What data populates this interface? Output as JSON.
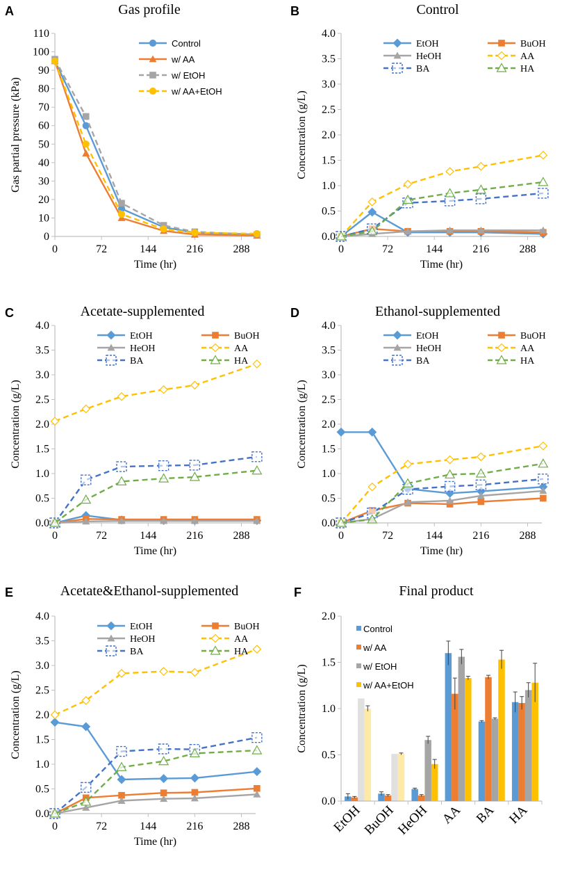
{
  "colors": {
    "control": "#5b9bd5",
    "aa": "#ed7d31",
    "etoh": "#a5a5a5",
    "aaetoh": "#ffc000",
    "EtOH": "#5b9bd5",
    "BuOH": "#ed7d31",
    "HeOH": "#a5a5a5",
    "AA": "#ffc000",
    "BA": "#4472c4",
    "HA": "#70ad47",
    "axis": "#bfbfbf",
    "text": "#000000"
  },
  "chart_data": [
    {
      "panel": "A",
      "type": "line",
      "title": "Gas profile",
      "xlabel": "Time (hr)",
      "ylabel": "Gas partial pressure (kPa)",
      "xlim": [
        0,
        310
      ],
      "ylim": [
        0,
        110
      ],
      "xticks": [
        "0",
        "72",
        "144",
        "216",
        "288"
      ],
      "yticks": [
        "0",
        "10",
        "20",
        "30",
        "40",
        "50",
        "60",
        "70",
        "80",
        "90",
        "100",
        "110"
      ],
      "x": [
        0,
        48,
        103,
        168,
        216,
        312
      ],
      "series": [
        {
          "name": "Control",
          "key": "control",
          "marker": "circle",
          "dash": "solid",
          "values": [
            95,
            60,
            15,
            5,
            2,
            1
          ]
        },
        {
          "name": "w/ AA",
          "key": "aa",
          "marker": "triangle",
          "dash": "solid",
          "values": [
            95,
            45,
            10,
            3,
            1,
            0.5
          ]
        },
        {
          "name": "w/ EtOH",
          "key": "etoh",
          "marker": "square",
          "dash": "dashed",
          "values": [
            96,
            65,
            18,
            6,
            2.5,
            1
          ]
        },
        {
          "name": "w/ AA+EtOH",
          "key": "aaetoh",
          "marker": "circle",
          "dash": "dashed",
          "values": [
            95,
            50,
            12,
            4,
            2,
            1.5
          ]
        }
      ]
    },
    {
      "panel": "B",
      "type": "line",
      "title": "Control",
      "xlabel": "Time (hr)",
      "ylabel": "Concentration (g/L)",
      "xlim": [
        0,
        310
      ],
      "ylim": [
        0,
        4.0
      ],
      "xticks": [
        "0",
        "72",
        "144",
        "216",
        "288"
      ],
      "yticks": [
        "0.0",
        "0.5",
        "1.0",
        "1.5",
        "2.0",
        "2.5",
        "3.0",
        "3.5",
        "4.0"
      ],
      "x": [
        0,
        48,
        103,
        168,
        216,
        312
      ],
      "series": [
        {
          "name": "EtOH",
          "key": "EtOH",
          "marker": "diamond",
          "dash": "solid",
          "values": [
            0,
            0.48,
            0.08,
            0.08,
            0.08,
            0.05
          ]
        },
        {
          "name": "BuOH",
          "key": "BuOH",
          "marker": "square",
          "dash": "solid",
          "values": [
            0,
            0.15,
            0.1,
            0.1,
            0.1,
            0.08
          ]
        },
        {
          "name": "HeOH",
          "key": "HeOH",
          "marker": "triangle",
          "dash": "solid",
          "values": [
            0,
            0.05,
            0.1,
            0.12,
            0.12,
            0.12
          ]
        },
        {
          "name": "AA",
          "key": "AA",
          "marker": "diamond-open",
          "dash": "dashed",
          "values": [
            0,
            0.68,
            1.03,
            1.28,
            1.38,
            1.6
          ]
        },
        {
          "name": "BA",
          "key": "BA",
          "marker": "square-open",
          "dash": "dashed",
          "values": [
            0,
            0.15,
            0.66,
            0.7,
            0.74,
            0.85
          ]
        },
        {
          "name": "HA",
          "key": "HA",
          "marker": "triangle-open",
          "dash": "dashed",
          "values": [
            0,
            0.1,
            0.72,
            0.85,
            0.92,
            1.07
          ]
        }
      ]
    },
    {
      "panel": "C",
      "type": "line",
      "title": "Acetate-supplemented",
      "xlabel": "Time (hr)",
      "ylabel": "Concentration (g/L)",
      "xlim": [
        0,
        310
      ],
      "ylim": [
        0,
        4.0
      ],
      "xticks": [
        "0",
        "72",
        "144",
        "216",
        "288"
      ],
      "yticks": [
        "0.0",
        "0.5",
        "1.0",
        "1.5",
        "2.0",
        "2.5",
        "3.0",
        "3.5",
        "4.0"
      ],
      "x": [
        0,
        48,
        103,
        168,
        216,
        312
      ],
      "series": [
        {
          "name": "EtOH",
          "key": "EtOH",
          "marker": "diamond",
          "dash": "solid",
          "values": [
            0,
            0.15,
            0.06,
            0.05,
            0.05,
            0.05
          ]
        },
        {
          "name": "BuOH",
          "key": "BuOH",
          "marker": "square",
          "dash": "solid",
          "values": [
            0,
            0.08,
            0.07,
            0.07,
            0.07,
            0.07
          ]
        },
        {
          "name": "HeOH",
          "key": "HeOH",
          "marker": "triangle",
          "dash": "solid",
          "values": [
            0,
            0.03,
            0.04,
            0.04,
            0.04,
            0.04
          ]
        },
        {
          "name": "AA",
          "key": "AA",
          "marker": "diamond-open",
          "dash": "dashed",
          "values": [
            2.06,
            2.31,
            2.56,
            2.7,
            2.79,
            3.22
          ]
        },
        {
          "name": "BA",
          "key": "BA",
          "marker": "square-open",
          "dash": "dashed",
          "values": [
            0,
            0.87,
            1.14,
            1.16,
            1.17,
            1.34
          ]
        },
        {
          "name": "HA",
          "key": "HA",
          "marker": "triangle-open",
          "dash": "dashed",
          "values": [
            0,
            0.47,
            0.84,
            0.9,
            0.93,
            1.06
          ]
        }
      ]
    },
    {
      "panel": "D",
      "type": "line",
      "title": "Ethanol-supplemented",
      "xlabel": "Time (hr)",
      "ylabel": "Concentration (g/L)",
      "xlim": [
        0,
        310
      ],
      "ylim": [
        0,
        4.0
      ],
      "xticks": [
        "0",
        "72",
        "144",
        "216",
        "288"
      ],
      "yticks": [
        "0.0",
        "0.5",
        "1.0",
        "1.5",
        "2.0",
        "2.5",
        "3.0",
        "3.5",
        "4.0"
      ],
      "x": [
        0,
        48,
        103,
        168,
        216,
        312
      ],
      "series": [
        {
          "name": "EtOH",
          "key": "EtOH",
          "marker": "diamond",
          "dash": "solid",
          "values": [
            1.84,
            1.84,
            0.69,
            0.6,
            0.64,
            0.73
          ]
        },
        {
          "name": "BuOH",
          "key": "BuOH",
          "marker": "square",
          "dash": "solid",
          "values": [
            0,
            0.25,
            0.4,
            0.38,
            0.43,
            0.5
          ]
        },
        {
          "name": "HeOH",
          "key": "HeOH",
          "marker": "triangle",
          "dash": "solid",
          "values": [
            0,
            0.08,
            0.42,
            0.45,
            0.55,
            0.65
          ]
        },
        {
          "name": "AA",
          "key": "AA",
          "marker": "diamond-open",
          "dash": "dashed",
          "values": [
            0,
            0.73,
            1.19,
            1.28,
            1.34,
            1.56
          ]
        },
        {
          "name": "BA",
          "key": "BA",
          "marker": "square-open",
          "dash": "dashed",
          "values": [
            0,
            0.2,
            0.68,
            0.74,
            0.77,
            0.89
          ]
        },
        {
          "name": "HA",
          "key": "HA",
          "marker": "triangle-open",
          "dash": "dashed",
          "values": [
            0,
            0.07,
            0.8,
            0.98,
            1.0,
            1.2
          ]
        }
      ]
    },
    {
      "panel": "E",
      "type": "line",
      "title": "Acetate&Ethanol-supplemented",
      "xlabel": "Time (hr)",
      "ylabel": "Concentration (g/L)",
      "xlim": [
        0,
        310
      ],
      "ylim": [
        0,
        4.0
      ],
      "xticks": [
        "0",
        "72",
        "144",
        "216",
        "288"
      ],
      "yticks": [
        "0.0",
        "0.5",
        "1.0",
        "1.5",
        "2.0",
        "2.5",
        "3.0",
        "3.5",
        "4.0"
      ],
      "x": [
        0,
        48,
        103,
        168,
        216,
        312
      ],
      "series": [
        {
          "name": "EtOH",
          "key": "EtOH",
          "marker": "diamond",
          "dash": "solid",
          "values": [
            1.85,
            1.76,
            0.69,
            0.71,
            0.72,
            0.85
          ]
        },
        {
          "name": "BuOH",
          "key": "BuOH",
          "marker": "square",
          "dash": "solid",
          "values": [
            0,
            0.32,
            0.37,
            0.42,
            0.43,
            0.51
          ]
        },
        {
          "name": "HeOH",
          "key": "HeOH",
          "marker": "triangle",
          "dash": "solid",
          "values": [
            0,
            0.12,
            0.26,
            0.3,
            0.31,
            0.39
          ]
        },
        {
          "name": "AA",
          "key": "AA",
          "marker": "diamond-open",
          "dash": "dashed",
          "values": [
            2.0,
            2.29,
            2.84,
            2.88,
            2.86,
            3.33
          ]
        },
        {
          "name": "BA",
          "key": "BA",
          "marker": "square-open",
          "dash": "dashed",
          "values": [
            0,
            0.53,
            1.26,
            1.31,
            1.3,
            1.54
          ]
        },
        {
          "name": "HA",
          "key": "HA",
          "marker": "triangle-open",
          "dash": "dashed",
          "values": [
            0,
            0.24,
            0.94,
            1.06,
            1.22,
            1.28
          ]
        }
      ]
    },
    {
      "panel": "F",
      "type": "bar",
      "title": "Final product",
      "xlabel": "",
      "ylabel": "Concentration (g/L)",
      "ylim": [
        0,
        2.0
      ],
      "yticks": [
        "0.0",
        "0.5",
        "1.0",
        "1.5",
        "2.0"
      ],
      "categories": [
        "EtOH",
        "BuOH",
        "HeOH",
        "AA",
        "BA",
        "HA"
      ],
      "series": [
        {
          "name": "Control",
          "key": "control",
          "values": [
            0.05,
            0.08,
            0.13,
            1.6,
            0.86,
            1.07
          ],
          "errors": [
            0.03,
            0.02,
            0.01,
            0.13,
            0.01,
            0.11
          ]
        },
        {
          "name": "w/ AA",
          "key": "aa",
          "values": [
            0.04,
            0.06,
            0.06,
            1.16,
            1.34,
            1.06
          ],
          "errors": [
            0.01,
            0.01,
            0.01,
            0.17,
            0.02,
            0.07
          ]
        },
        {
          "name": "w/ EtOH",
          "key": "etoh",
          "values": [
            1.11,
            0.51,
            0.66,
            1.56,
            0.89,
            1.2
          ],
          "errors": [
            0.0,
            0.0,
            0.04,
            0.08,
            0.01,
            0.08
          ]
        },
        {
          "name": "w/ AA+EtOH",
          "key": "aaetoh",
          "values": [
            1.0,
            0.51,
            0.4,
            1.33,
            1.53,
            1.28
          ],
          "errors": [
            0.03,
            0.01,
            0.05,
            0.02,
            0.1,
            0.21
          ]
        }
      ]
    }
  ]
}
